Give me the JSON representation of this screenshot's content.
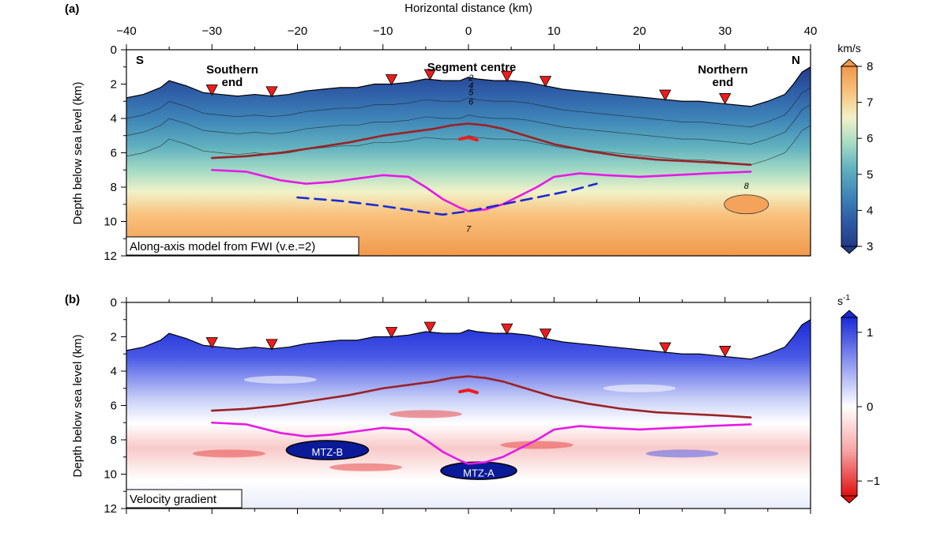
{
  "chart_data": [
    {
      "type": "heatmap",
      "panel_label": "(a)",
      "title": "Horizontal distance (km)",
      "xlabel": "Horizontal distance (km)",
      "ylabel": "Depth below sea level (km)",
      "xlim": [
        -40,
        40
      ],
      "ylim": [
        12,
        0
      ],
      "xticks": [
        -40,
        -30,
        -20,
        -10,
        0,
        10,
        20,
        30,
        40
      ],
      "xtick_labels": [
        "−40",
        "−30",
        "−20",
        "−10",
        "0",
        "10",
        "20",
        "30",
        "40"
      ],
      "yticks": [
        0,
        2,
        4,
        6,
        8,
        10,
        12
      ],
      "ytick_labels": [
        "0",
        "2",
        "4",
        "6",
        "8",
        "10",
        "12"
      ],
      "inset_label": "Along-axis model from FWI (v.e.=2)",
      "annotations": {
        "south": "S",
        "north": "N",
        "southern_end": [
          "Southern",
          "end"
        ],
        "segment_centre": "Segment centre",
        "northern_end": [
          "Northern",
          "end"
        ]
      },
      "contour_labels": [
        {
          "text": "2",
          "x": 0.3,
          "y": 1.8
        },
        {
          "text": "4",
          "x": 0.3,
          "y": 2.25
        },
        {
          "text": "5",
          "x": 0.3,
          "y": 2.65
        },
        {
          "text": "6",
          "x": 0.3,
          "y": 3.2
        },
        {
          "text": "8",
          "x": 32.5,
          "y": 8.1
        },
        {
          "text": "7",
          "x": 0,
          "y": 10.6
        }
      ],
      "colorbar": {
        "unit": "km/s",
        "range": [
          3,
          8
        ],
        "ticks": [
          3,
          4,
          5,
          6,
          7,
          8
        ],
        "tick_labels": [
          "3",
          "4",
          "5",
          "6",
          "7",
          "8"
        ],
        "colors": [
          "#243b87",
          "#2e5ba6",
          "#3f86b8",
          "#5fb0bf",
          "#a5dbc4",
          "#f1f2c8",
          "#f9c27e",
          "#f0984b"
        ]
      },
      "seafloor": {
        "x": [
          -40,
          -38,
          -36,
          -35,
          -33,
          -31,
          -29,
          -27,
          -25,
          -23,
          -21,
          -19,
          -17,
          -15,
          -13,
          -11,
          -9,
          -7,
          -5,
          -3,
          -1,
          0,
          1,
          3,
          5,
          7,
          9,
          11,
          13,
          15,
          17,
          19,
          21,
          23,
          25,
          27,
          29,
          31,
          33,
          35,
          37,
          38,
          39,
          40
        ],
        "depth": [
          2.8,
          2.6,
          2.2,
          1.8,
          2.1,
          2.5,
          2.6,
          2.7,
          2.6,
          2.7,
          2.6,
          2.4,
          2.3,
          2.2,
          2.2,
          2.0,
          2.0,
          1.9,
          1.7,
          1.8,
          1.8,
          1.6,
          1.7,
          1.8,
          1.8,
          1.9,
          2.1,
          2.3,
          2.4,
          2.5,
          2.6,
          2.7,
          2.8,
          2.9,
          3.0,
          3.0,
          3.1,
          3.2,
          3.3,
          3.0,
          2.6,
          2.0,
          1.3,
          1.0
        ]
      },
      "obs_stations": {
        "x": [
          -30,
          -23,
          -9,
          -4.5,
          4.5,
          9,
          23,
          30
        ],
        "depth": [
          2.6,
          2.7,
          2.0,
          1.7,
          1.8,
          2.1,
          2.9,
          3.1
        ],
        "color": "#ee1c1c"
      },
      "series": [
        {
          "x": [
            -30,
            -26,
            -22,
            -18,
            -14,
            -10,
            -7,
            -4,
            -2,
            0,
            2,
            4,
            6,
            8,
            10,
            14,
            18,
            22,
            26,
            30,
            33
          ],
          "depth": [
            6.3,
            6.2,
            6.0,
            5.7,
            5.4,
            5.0,
            4.8,
            4.6,
            4.4,
            4.3,
            4.4,
            4.6,
            4.9,
            5.2,
            5.5,
            5.9,
            6.2,
            6.4,
            6.5,
            6.6,
            6.7
          ],
          "color": "#9b2226",
          "style": "solid"
        },
        {
          "x": [
            -30,
            -26,
            -22,
            -19,
            -16,
            -13,
            -10,
            -7,
            -5,
            -3,
            -1,
            0,
            2,
            4,
            6,
            8,
            10,
            13,
            16,
            20,
            24,
            28,
            33
          ],
          "depth": [
            7.0,
            7.1,
            7.6,
            7.8,
            7.7,
            7.5,
            7.3,
            7.4,
            8.0,
            8.7,
            9.2,
            9.4,
            9.3,
            9.0,
            8.5,
            8.0,
            7.4,
            7.2,
            7.3,
            7.4,
            7.3,
            7.2,
            7.1
          ],
          "color": "#e619e6",
          "style": "solid"
        },
        {
          "x": [
            -20,
            -15,
            -10,
            -6,
            -3,
            0,
            4,
            8,
            12,
            15
          ],
          "depth": [
            8.6,
            8.8,
            9.1,
            9.4,
            9.6,
            9.4,
            9.0,
            8.6,
            8.2,
            7.8
          ],
          "color": "#1a2ad6",
          "style": "dashed"
        },
        {
          "x": [
            -1,
            0,
            1
          ],
          "depth": [
            5.2,
            5.1,
            5.25
          ],
          "color": "#ee1c1c",
          "style": "solid"
        }
      ]
    },
    {
      "type": "heatmap",
      "panel_label": "(b)",
      "xlabel": "",
      "ylabel": "Depth below sea level (km)",
      "xlim": [
        -40,
        40
      ],
      "ylim": [
        12,
        0
      ],
      "yticks": [
        0,
        2,
        4,
        6,
        8,
        10,
        12
      ],
      "ytick_labels": [
        "0",
        "2",
        "4",
        "6",
        "8",
        "10",
        "12"
      ],
      "inset_label": "Velocity gradient",
      "zones": [
        {
          "text": "MTZ-B",
          "x": -16.5,
          "y": 8.7
        },
        {
          "text": "MTZ-A",
          "x": 1.2,
          "y": 9.9
        }
      ],
      "colorbar": {
        "unit": "s",
        "unit_exponent": "-1",
        "range": [
          -1.2,
          1.2
        ],
        "ticks": [
          -1,
          0,
          1
        ],
        "tick_labels": [
          "−1",
          "0",
          "1"
        ],
        "colors": [
          "#e01010",
          "#f7a3a3",
          "#ffffff",
          "#8b96f0",
          "#1a2ad6"
        ]
      },
      "series": [
        {
          "x": [
            -30,
            -26,
            -22,
            -18,
            -14,
            -10,
            -7,
            -4,
            -2,
            0,
            2,
            4,
            6,
            8,
            10,
            14,
            18,
            22,
            26,
            30,
            33
          ],
          "depth": [
            6.3,
            6.2,
            6.0,
            5.7,
            5.4,
            5.0,
            4.8,
            4.6,
            4.4,
            4.3,
            4.4,
            4.6,
            4.9,
            5.2,
            5.5,
            5.9,
            6.2,
            6.4,
            6.5,
            6.6,
            6.7
          ],
          "color": "#9b2226",
          "style": "solid"
        },
        {
          "x": [
            -30,
            -26,
            -22,
            -19,
            -16,
            -13,
            -10,
            -7,
            -5,
            -3,
            -1,
            0,
            2,
            4,
            6,
            8,
            10,
            13,
            16,
            20,
            24,
            28,
            33
          ],
          "depth": [
            7.0,
            7.1,
            7.6,
            7.8,
            7.7,
            7.5,
            7.3,
            7.4,
            8.0,
            8.7,
            9.2,
            9.4,
            9.3,
            9.0,
            8.5,
            8.0,
            7.4,
            7.2,
            7.3,
            7.4,
            7.3,
            7.2,
            7.1
          ],
          "color": "#e619e6",
          "style": "solid"
        },
        {
          "x": [
            -1,
            0,
            1
          ],
          "depth": [
            5.2,
            5.1,
            5.25
          ],
          "color": "#ee1c1c",
          "style": "solid"
        }
      ]
    }
  ]
}
